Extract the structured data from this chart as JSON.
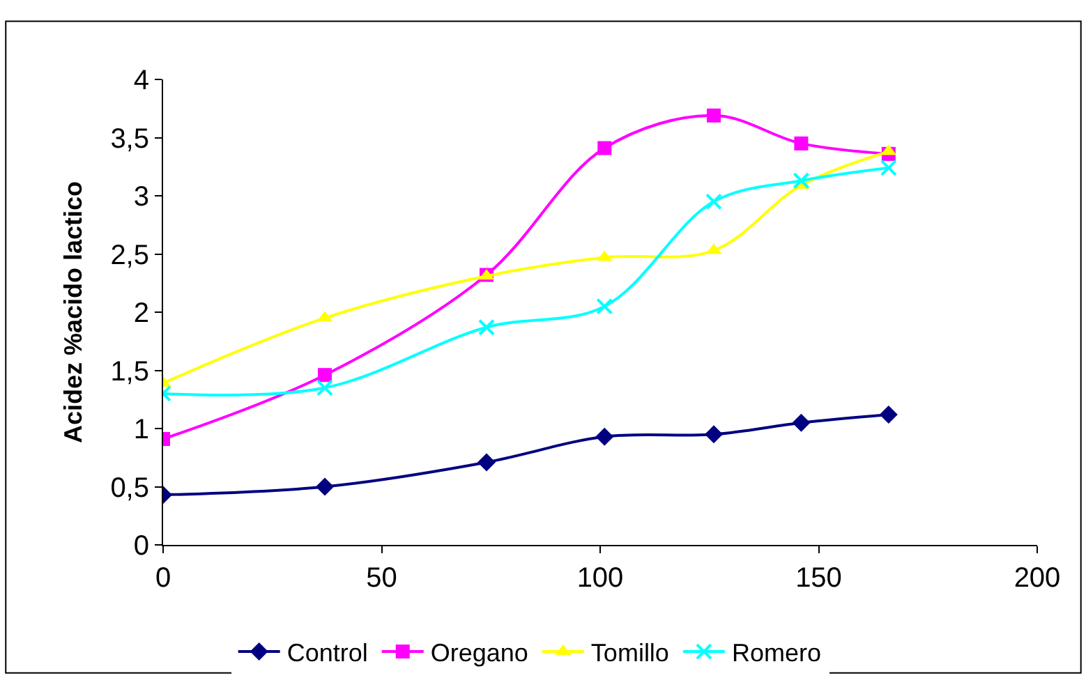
{
  "chart_data": {
    "type": "line",
    "ylabel": "Acidez %acido lactico",
    "x": [
      0,
      37,
      74,
      101,
      126,
      146,
      166
    ],
    "series": [
      {
        "name": "Control",
        "color": "#000080",
        "marker": "diamond",
        "values": [
          0.43,
          0.5,
          0.71,
          0.93,
          0.95,
          1.05,
          1.12
        ]
      },
      {
        "name": "Oregano",
        "color": "#ff00ff",
        "marker": "square",
        "values": [
          0.91,
          1.46,
          2.32,
          3.41,
          3.69,
          3.45,
          3.36
        ]
      },
      {
        "name": "Tomillo",
        "color": "#ffff00",
        "marker": "triangle",
        "values": [
          1.39,
          1.95,
          2.31,
          2.47,
          2.53,
          3.09,
          3.38
        ]
      },
      {
        "name": "Romero",
        "color": "#00ffff",
        "marker": "cross",
        "values": [
          1.3,
          1.35,
          1.87,
          2.05,
          2.95,
          3.13,
          3.24
        ]
      }
    ],
    "xlim": [
      0,
      200
    ],
    "xticks": [
      0,
      50,
      100,
      150,
      200
    ],
    "ylim": [
      0,
      4
    ],
    "yticks": [
      {
        "value": 0,
        "label": "0"
      },
      {
        "value": 0.5,
        "label": "0,5"
      },
      {
        "value": 1,
        "label": "1"
      },
      {
        "value": 1.5,
        "label": "1,5"
      },
      {
        "value": 2,
        "label": "2"
      },
      {
        "value": 2.5,
        "label": "2,5"
      },
      {
        "value": 3,
        "label": "3"
      },
      {
        "value": 3.5,
        "label": "3,5"
      },
      {
        "value": 4,
        "label": "4"
      }
    ],
    "legend": "bottom"
  }
}
